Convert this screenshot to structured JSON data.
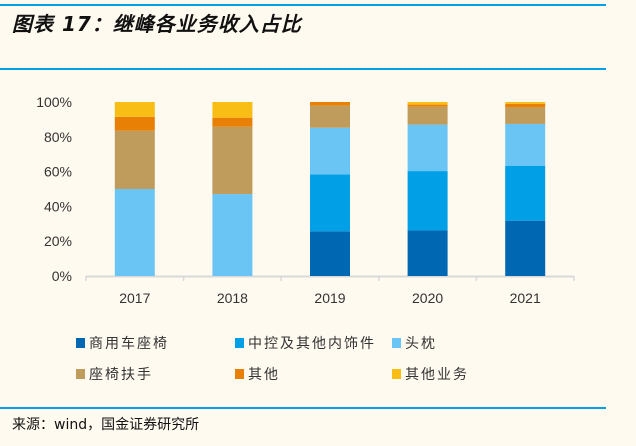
{
  "title": "图表 17：继峰各业务收入占比",
  "source": "来源：wind，国金证券研究所",
  "chart_data": {
    "type": "bar",
    "stacked": true,
    "categories": [
      "2017",
      "2018",
      "2019",
      "2020",
      "2021"
    ],
    "ylim": [
      0,
      100
    ],
    "yticks": [
      "0%",
      "20%",
      "40%",
      "60%",
      "80%",
      "100%"
    ],
    "ytick_values": [
      0,
      20,
      40,
      60,
      80,
      100
    ],
    "grid": false,
    "legend_position": "bottom",
    "series": [
      {
        "name": "商用车座椅",
        "color": "#0067b3",
        "values": [
          0,
          0,
          25.7,
          26.2,
          31.8
        ]
      },
      {
        "name": "中控及其他内饰件",
        "color": "#009fe6",
        "values": [
          0,
          0,
          32.7,
          34.1,
          31.6
        ]
      },
      {
        "name": "头枕",
        "color": "#6ac5f5",
        "values": [
          50,
          47.1,
          26.8,
          26.7,
          24.0
        ]
      },
      {
        "name": "座椅扶手",
        "color": "#bf9b5c",
        "values": [
          33.5,
          38.7,
          12.7,
          10.3,
          9.5
        ]
      },
      {
        "name": "其他",
        "color": "#e98006",
        "values": [
          8.0,
          5.2,
          2.1,
          1.2,
          2.1
        ]
      },
      {
        "name": "其他业务",
        "color": "#f9be16",
        "values": [
          8.5,
          9.0,
          0,
          1.5,
          1.0
        ]
      }
    ]
  }
}
